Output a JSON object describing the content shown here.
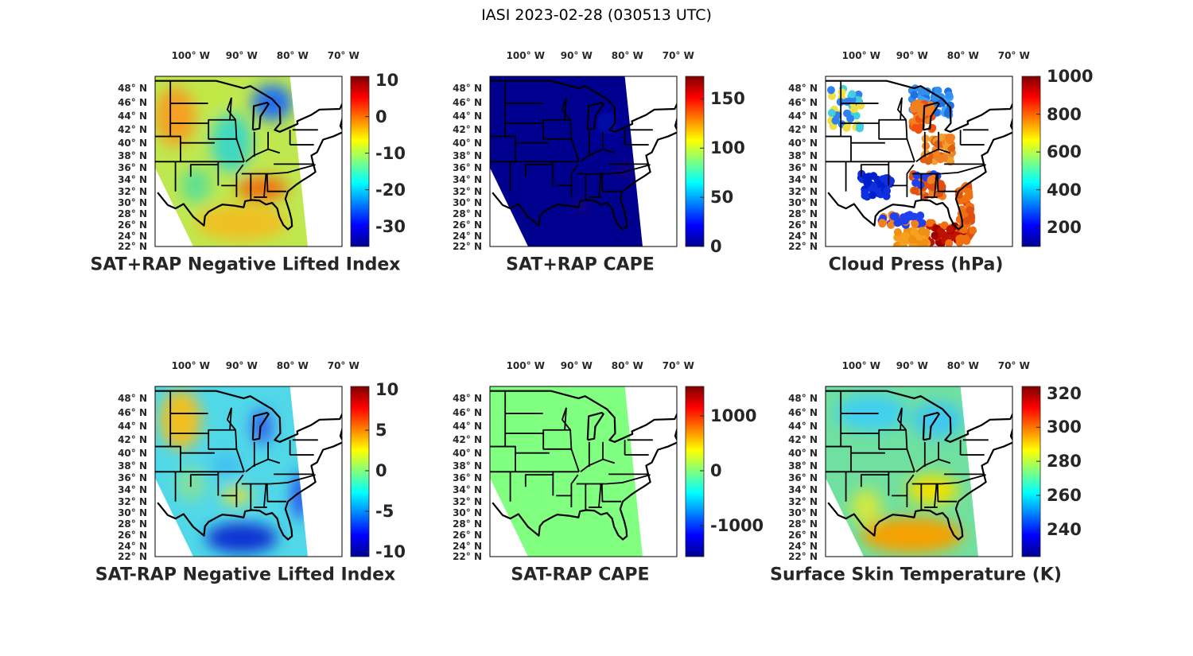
{
  "title": "IASI 2023-02-28 (030513 UTC)",
  "colormap": "jet",
  "lon_ticks": [
    "100° W",
    "90° W",
    "80° W",
    "70° W"
  ],
  "lat_ticks": [
    "48° N",
    "46° N",
    "44° N",
    "42° N",
    "40° N",
    "38° N",
    "36° N",
    "34° N",
    "32° N",
    "30° N",
    "28° N",
    "26° N",
    "24° N",
    "22° N"
  ],
  "panels": [
    {
      "title": "SAT+RAP Negative Lifted Index",
      "colorbar": {
        "range": [
          -35.5,
          11
        ],
        "ticks": [
          "10",
          "0",
          "-10",
          "-20",
          "-30"
        ]
      }
    },
    {
      "title": "SAT+RAP CAPE",
      "colorbar": {
        "range": [
          0,
          173
        ],
        "ticks": [
          "150",
          "100",
          "50",
          "0"
        ]
      }
    },
    {
      "title": "Cloud Press (hPa)",
      "colorbar": {
        "range": [
          100,
          1000
        ],
        "ticks": [
          "1000",
          "800",
          "600",
          "400",
          "200"
        ]
      }
    },
    {
      "title": "SAT-RAP Negative Lifted Index",
      "colorbar": {
        "range": [
          -10.6,
          10.4
        ],
        "ticks": [
          "10",
          "5",
          "0",
          "-5",
          "-10"
        ]
      }
    },
    {
      "title": "SAT-RAP CAPE",
      "colorbar": {
        "range": [
          -1565,
          1536
        ],
        "ticks": [
          "1000",
          "0",
          "-1000"
        ]
      }
    },
    {
      "title": "Surface Skin Temperature (K)",
      "colorbar": {
        "range": [
          224,
          324
        ],
        "ticks": [
          "320",
          "300",
          "280",
          "260",
          "240"
        ]
      }
    }
  ]
}
